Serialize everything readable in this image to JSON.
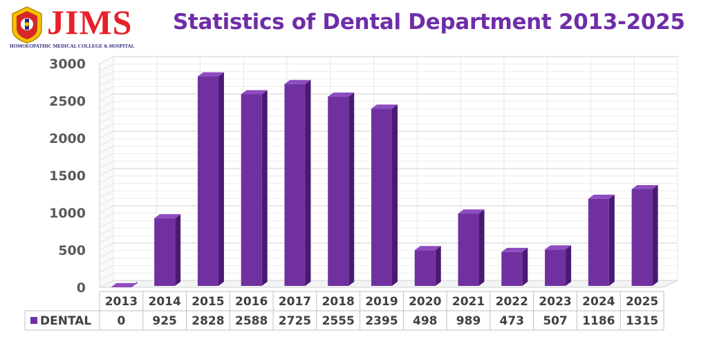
{
  "header": {
    "logo_text": "JIMS",
    "logo_subtitle": "HOMOEOPATHIC MEDICAL COLLEGE & HOSPITAL",
    "title": "Statistics of Dental Department 2013-2025"
  },
  "colors": {
    "bar_front": "#7030a0",
    "bar_side": "#4a1a72",
    "bar_top": "#8e4cc0",
    "title": "#6f2da8",
    "logo_red": "#e8202a"
  },
  "chart_data": {
    "type": "bar",
    "title": "Statistics of Dental Department 2013-2025",
    "categories": [
      "2013",
      "2014",
      "2015",
      "2016",
      "2017",
      "2018",
      "2019",
      "2020",
      "2021",
      "2022",
      "2023",
      "2024",
      "2025"
    ],
    "series": [
      {
        "name": "DENTAL",
        "values": [
          0,
          925,
          2828,
          2588,
          2725,
          2555,
          2395,
          498,
          989,
          473,
          507,
          1186,
          1315
        ]
      }
    ],
    "yticks": [
      0,
      500,
      1000,
      1500,
      2000,
      2500,
      3000
    ],
    "ylim": [
      0,
      3000
    ],
    "grid": true,
    "data_table": true,
    "legend": "data-table"
  }
}
